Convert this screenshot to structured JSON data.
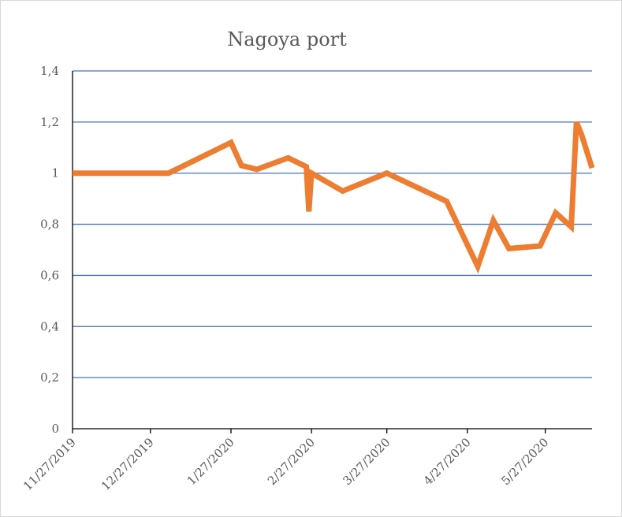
{
  "chart_data": {
    "type": "line",
    "title": "Nagoya port",
    "xlabel": "",
    "ylabel": "",
    "ylim": [
      0,
      1.4
    ],
    "y_tick_labels": [
      "0",
      "0,2",
      "0,4",
      "0,6",
      "0,8",
      "1",
      "1,2",
      "1,4"
    ],
    "y_tick_values": [
      0,
      0.2,
      0.4,
      0.6,
      0.8,
      1.0,
      1.2,
      1.4
    ],
    "x_tick_labels": [
      "11/27/2019",
      "12/27/2019",
      "1/27/2020",
      "2/27/2020",
      "3/27/2020",
      "4/27/2020",
      "5/27/2020"
    ],
    "x_tick_dates": [
      "2019-11-27",
      "2019-12-27",
      "2020-01-27",
      "2020-02-27",
      "2020-03-27",
      "2020-04-27",
      "2020-05-27"
    ],
    "xlim": [
      "2019-11-27",
      "2020-06-14"
    ],
    "grid": true,
    "line_color": "#ED7D31",
    "grid_color": "#4472C4",
    "series": [
      {
        "x": [
          "2019-11-27",
          "2019-12-05",
          "2019-12-15",
          "2020-01-03",
          "2020-01-27",
          "2020-01-31",
          "2020-02-06",
          "2020-02-18",
          "2020-02-25",
          "2020-02-26",
          "2020-02-27",
          "2020-03-10",
          "2020-03-27",
          "2020-04-19",
          "2020-05-01",
          "2020-05-07",
          "2020-05-13",
          "2020-05-25",
          "2020-05-31",
          "2020-06-06",
          "2020-06-08",
          "2020-06-10",
          "2020-06-14"
        ],
        "y": [
          1.0,
          1.0,
          1.0,
          1.0,
          1.12,
          1.03,
          1.015,
          1.06,
          1.025,
          0.85,
          1.0,
          0.93,
          1.0,
          0.89,
          0.635,
          0.815,
          0.705,
          0.715,
          0.845,
          0.79,
          1.2,
          1.15,
          1.02
        ]
      }
    ]
  }
}
